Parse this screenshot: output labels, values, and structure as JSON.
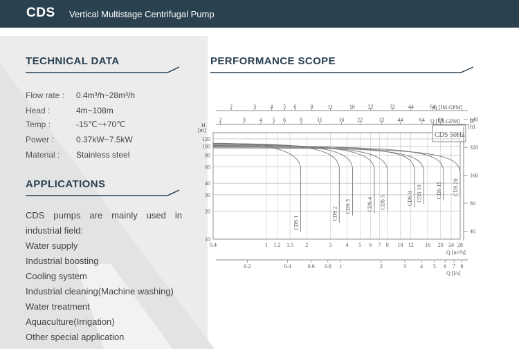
{
  "header": {
    "brand": "CDS",
    "subtitle": "Vertical Multistage Centrifugal Pump"
  },
  "technical": {
    "title": "TECHNICAL DATA",
    "rows": [
      {
        "label": "Flow rate :",
        "value": "0.4m³/h~28m³/h"
      },
      {
        "label": "Head :",
        "value": "4m~108m"
      },
      {
        "label": "Temp :",
        "value": "-15℃~+70℃"
      },
      {
        "label": "Power :",
        "value": "0.37kW~7.5kW"
      },
      {
        "label": "Material :",
        "value": "Stainless steel"
      }
    ]
  },
  "applications": {
    "title": "APPLICATIONS",
    "intro_line1": "CDS pumps are mainly used in",
    "intro_line2": "industrial field:",
    "items": [
      "Water supply",
      "Industrial boosting",
      "Cooling system",
      "Industrial cleaning(Machine washing)",
      "Water treatment",
      "Aquaculture(Irrigation)",
      "Other special application"
    ]
  },
  "performance": {
    "title": "PERFORMANCE SCOPE"
  },
  "colors": {
    "header_bg": "#2a4150",
    "title": "#2a4150",
    "chart_line": "#666666"
  },
  "chart_data": {
    "type": "line",
    "scale": "log-log",
    "frequency_label": "CDS 50Hz",
    "x_primary": {
      "label": "Q [m³/h]",
      "ticks": [
        "0.4",
        "1",
        "1.2",
        "1.5",
        "2",
        "3",
        "4",
        "5",
        "6",
        "7",
        "8",
        "10",
        "12",
        "16",
        "20",
        "24",
        "28"
      ],
      "range": [
        0.4,
        28
      ]
    },
    "x_ls": {
      "label": "Q [l/s]",
      "ticks": [
        "0.2",
        "0.4",
        "0.6",
        "0.8",
        "1",
        "2",
        "3",
        "4",
        "5",
        "6",
        "7",
        "8"
      ]
    },
    "x_imp": {
      "label": "Q [IM.GPM]",
      "ticks": [
        "2",
        "3",
        "4",
        "5",
        "6",
        "8",
        "11",
        "16",
        "22",
        "32",
        "44",
        "64"
      ]
    },
    "x_us": {
      "label": "Q [US.GPM]",
      "ticks": [
        "2",
        "3",
        "4",
        "5",
        "6",
        "8",
        "11",
        "16",
        "22",
        "32",
        "44",
        "64",
        "88"
      ]
    },
    "y_left": {
      "label": "H [m]",
      "ticks": [
        "10",
        "20",
        "30",
        "40",
        "60",
        "80",
        "100",
        "120"
      ],
      "range": [
        10,
        140
      ]
    },
    "y_right": {
      "label": "H [ft]",
      "ticks": [
        "40",
        "80",
        "160",
        "320",
        "640"
      ]
    },
    "series": [
      {
        "name": "CDS 1",
        "q_min": 0.4,
        "q_max": 1.8,
        "h_max": 108,
        "h_bottom": 12
      },
      {
        "name": "CDS 2",
        "q_min": 1.0,
        "q_max": 3.5,
        "h_max": 107,
        "h_bottom": 15
      },
      {
        "name": "CDS 3",
        "q_min": 1.2,
        "q_max": 4.4,
        "h_max": 106,
        "h_bottom": 18
      },
      {
        "name": "CDS 4",
        "q_min": 1.5,
        "q_max": 6.4,
        "h_max": 104,
        "h_bottom": 19
      },
      {
        "name": "CDS 5",
        "q_min": 2.0,
        "q_max": 8.0,
        "h_max": 102,
        "h_bottom": 20
      },
      {
        "name": "CDS 8",
        "q_min": 5.0,
        "q_max": 12.8,
        "h_max": 101,
        "h_bottom": 22
      },
      {
        "name": "CDS 10",
        "q_min": 6.0,
        "q_max": 15.0,
        "h_max": 98,
        "h_bottom": 24
      },
      {
        "name": "CDS 15",
        "q_min": 8.0,
        "q_max": 21.0,
        "h_max": 100,
        "h_bottom": 26
      },
      {
        "name": "CDS 20",
        "q_min": 10.0,
        "q_max": 28.0,
        "h_max": 96,
        "h_bottom": 28
      }
    ]
  }
}
